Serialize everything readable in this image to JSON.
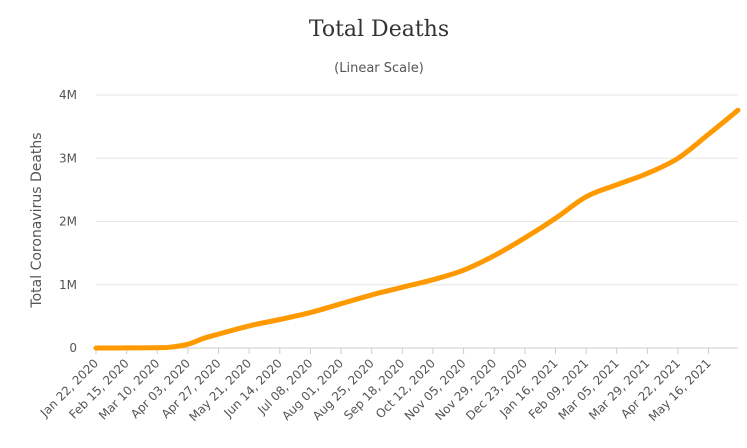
{
  "chart_data": {
    "type": "line",
    "title": "Total Deaths",
    "subtitle": "(Linear Scale)",
    "xlabel": "",
    "ylabel": "Total Coronavirus Deaths",
    "ylim": [
      0,
      4000000
    ],
    "yticks": [
      {
        "value": 0,
        "label": "0"
      },
      {
        "value": 1000000,
        "label": "1M"
      },
      {
        "value": 2000000,
        "label": "2M"
      },
      {
        "value": 3000000,
        "label": "3M"
      },
      {
        "value": 4000000,
        "label": "4M"
      }
    ],
    "x_start": "Jan 22, 2020",
    "x_end": "Jun 08, 2021",
    "xticks": [
      "Jan 22, 2020",
      "Feb 15, 2020",
      "Mar 10, 2020",
      "Apr 03, 2020",
      "Apr 27, 2020",
      "May 21, 2020",
      "Jun 14, 2020",
      "Jul 08, 2020",
      "Aug 01, 2020",
      "Aug 25, 2020",
      "Sep 18, 2020",
      "Oct 12, 2020",
      "Nov 05, 2020",
      "Nov 29, 2020",
      "Dec 23, 2020",
      "Jan 16, 2021",
      "Feb 09, 2021",
      "Mar 05, 2021",
      "Mar 29, 2021",
      "Apr 22, 2021",
      "May 16, 2021"
    ],
    "grid": true,
    "legend": "none",
    "series": [
      {
        "color": "#FF9900",
        "x": [
          "Jan 22, 2020",
          "Feb 15, 2020",
          "Mar 10, 2020",
          "Mar 20, 2020",
          "Apr 03, 2020",
          "Apr 15, 2020",
          "Apr 27, 2020",
          "May 21, 2020",
          "Jun 14, 2020",
          "Jul 08, 2020",
          "Aug 01, 2020",
          "Aug 25, 2020",
          "Sep 18, 2020",
          "Oct 12, 2020",
          "Nov 05, 2020",
          "Nov 29, 2020",
          "Dec 23, 2020",
          "Jan 16, 2021",
          "Feb 09, 2021",
          "Mar 05, 2021",
          "Mar 29, 2021",
          "Apr 22, 2021",
          "May 16, 2021",
          "Jun 08, 2021"
        ],
        "values": [
          20,
          1000,
          4500,
          12000,
          60000,
          150000,
          220000,
          350000,
          450000,
          560000,
          700000,
          840000,
          960000,
          1080000,
          1230000,
          1460000,
          1740000,
          2050000,
          2390000,
          2580000,
          2760000,
          3000000,
          3380000,
          3760000
        ]
      }
    ]
  }
}
